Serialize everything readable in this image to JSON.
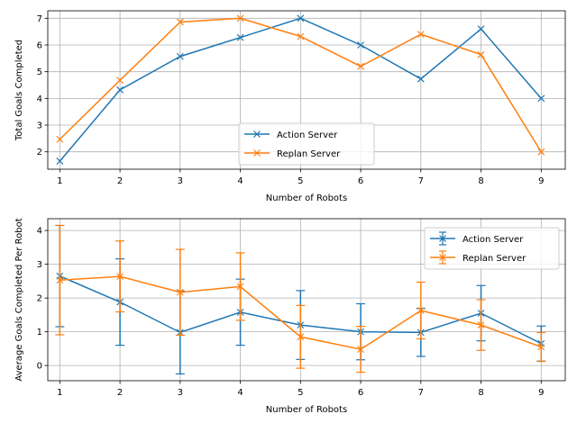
{
  "chart_data": [
    {
      "type": "line",
      "x": [
        1,
        2,
        3,
        4,
        5,
        6,
        7,
        8,
        9
      ],
      "series": [
        {
          "name": "Action Server",
          "values": [
            1.65,
            4.32,
            5.57,
            6.28,
            7.0,
            6.0,
            4.73,
            6.6,
            4.0
          ]
        },
        {
          "name": "Replan Server",
          "values": [
            2.47,
            4.68,
            6.86,
            7.0,
            6.32,
            5.2,
            6.4,
            5.64,
            2.0
          ]
        }
      ],
      "title": "",
      "xlabel": "Number of Robots",
      "ylabel": "Total Goals Completed",
      "xlim": [
        0.8,
        9.4
      ],
      "ylim": [
        1.35,
        7.28
      ],
      "xticks": [
        "1",
        "2",
        "3",
        "4",
        "5",
        "6",
        "7",
        "8",
        "9"
      ],
      "yticks": [
        "2",
        "3",
        "4",
        "5",
        "6",
        "7"
      ],
      "grid": true,
      "legend_position": "lower-center",
      "colors": [
        "#1f77b4",
        "#ff7f0e"
      ],
      "marker": "x"
    },
    {
      "type": "line",
      "x": [
        1,
        2,
        3,
        4,
        5,
        6,
        7,
        8,
        9
      ],
      "series": [
        {
          "name": "Action Server",
          "values": [
            2.65,
            1.88,
            0.98,
            1.58,
            1.2,
            1.0,
            0.98,
            1.55,
            0.65
          ],
          "error": [
            1.5,
            1.28,
            1.23,
            0.98,
            1.02,
            0.83,
            0.71,
            0.82,
            0.52
          ]
        },
        {
          "name": "Replan Server",
          "values": [
            2.53,
            2.64,
            2.17,
            2.34,
            0.85,
            0.48,
            1.63,
            1.2,
            0.55
          ],
          "error": [
            1.62,
            1.05,
            1.27,
            1.0,
            0.93,
            0.68,
            0.84,
            0.75,
            0.43
          ]
        }
      ],
      "title": "",
      "xlabel": "Number of Robots",
      "ylabel": "Average Goals Completed Per Robot",
      "xlim": [
        0.8,
        9.4
      ],
      "ylim": [
        -0.45,
        4.35
      ],
      "xticks": [
        "1",
        "2",
        "3",
        "4",
        "5",
        "6",
        "7",
        "8",
        "9"
      ],
      "yticks": [
        "0",
        "1",
        "2",
        "3",
        "4"
      ],
      "grid": true,
      "legend_position": "upper-right",
      "colors": [
        "#1f77b4",
        "#ff7f0e"
      ],
      "marker": "x",
      "error_bars": true
    }
  ]
}
